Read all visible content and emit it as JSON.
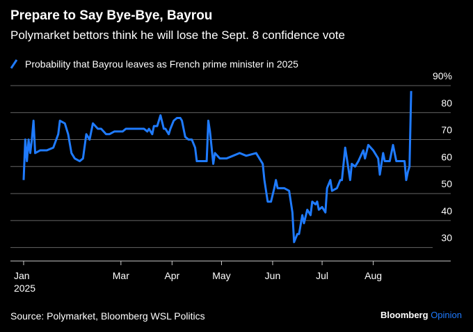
{
  "chart_data": {
    "type": "line",
    "title": "Prepare to Say Bye-Bye, Bayrou",
    "subtitle": "Polymarket bettors think he will lose the Sept. 8 confidence vote",
    "source": "Source: Polymarket, Bloomberg WSL Politics",
    "brand": [
      "Bloomberg",
      "Opinion"
    ],
    "year_label": "2025",
    "series": [
      {
        "name": "Probability that Bayrou leaves as French prime minister in 2025",
        "color": "#1f7bff",
        "x": [
          0,
          1,
          2,
          3,
          4,
          5,
          6,
          7,
          10,
          14,
          18,
          21,
          22,
          25,
          27,
          29,
          31,
          34,
          36,
          38,
          40,
          42,
          45,
          47,
          50,
          52,
          55,
          57,
          60,
          62,
          68,
          71,
          73,
          75,
          76,
          78,
          79,
          81,
          83,
          85,
          86,
          88,
          89,
          91,
          93,
          95,
          96,
          98,
          100,
          102,
          104,
          105,
          111,
          112,
          113,
          115,
          116,
          119,
          123,
          127,
          131,
          135,
          141,
          143,
          145,
          146,
          148,
          150,
          152,
          153,
          154,
          158,
          161,
          163,
          164,
          166,
          167,
          169,
          170,
          172,
          174,
          175,
          177,
          178,
          179,
          181,
          183,
          184,
          186,
          187,
          190,
          192,
          193,
          195,
          196,
          198,
          199,
          201,
          203,
          206,
          207,
          209,
          212,
          215,
          216,
          218,
          219,
          222,
          224,
          226,
          229,
          231,
          232,
          233,
          234,
          235
        ],
        "values": [
          55,
          70,
          62,
          70,
          65,
          70,
          77,
          65,
          66,
          66,
          67,
          72,
          77,
          76,
          72,
          65,
          63,
          62,
          63,
          72,
          70,
          76,
          74,
          74,
          72,
          72,
          73,
          73,
          73,
          74,
          74,
          74,
          74,
          73,
          74,
          72,
          75,
          75,
          79,
          74,
          74,
          72,
          74,
          77,
          78,
          78,
          77,
          71,
          70,
          70,
          67,
          62,
          62,
          77,
          73,
          61,
          65,
          63,
          63,
          64,
          65,
          64,
          65,
          63,
          61,
          55,
          47,
          47,
          52,
          55,
          52,
          52,
          51,
          43,
          32,
          35,
          35,
          42,
          39,
          44,
          42,
          47,
          46,
          47,
          44,
          45,
          43,
          52,
          55,
          51,
          52,
          55,
          55,
          67,
          63,
          55,
          61,
          60,
          62,
          66,
          63,
          68,
          66,
          63,
          57,
          65,
          62,
          62,
          68,
          62,
          62,
          62,
          55,
          58,
          60,
          88
        ]
      }
    ],
    "xlim": [
      -8,
      259
    ],
    "xticks": [
      {
        "value": 0,
        "label": "Jan"
      },
      {
        "value": 59,
        "label": "Mar"
      },
      {
        "value": 90,
        "label": "Apr"
      },
      {
        "value": 120,
        "label": "May"
      },
      {
        "value": 151,
        "label": "Jun"
      },
      {
        "value": 181,
        "label": "Jul"
      },
      {
        "value": 212,
        "label": "Aug"
      }
    ],
    "ylim": [
      25,
      90
    ],
    "yticks": [
      30,
      40,
      50,
      60,
      70,
      80,
      {
        "value": 90,
        "label": "90%"
      }
    ],
    "grid": true
  }
}
